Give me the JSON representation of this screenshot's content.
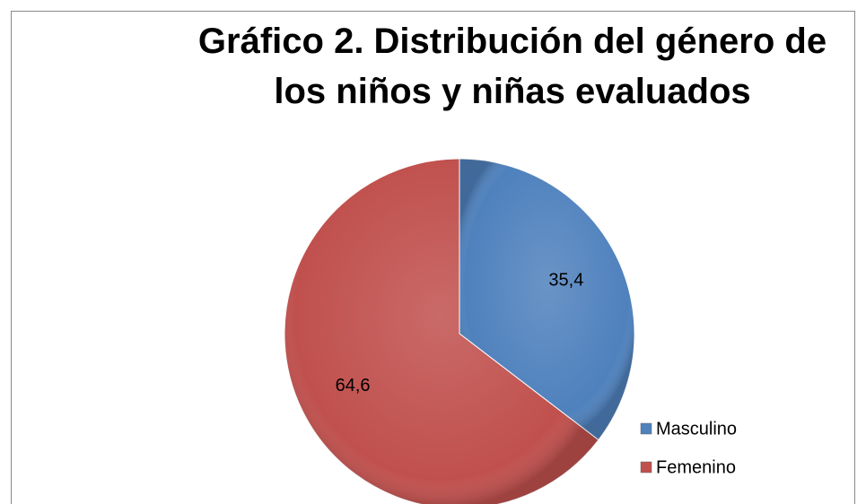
{
  "chart_data": {
    "type": "pie",
    "title": "Gráfico 2. Distribución del género de los niños y niñas evaluados",
    "categories": [
      "Masculino",
      "Femenino"
    ],
    "values": [
      35.4,
      64.6
    ],
    "value_labels": [
      "35,4",
      "64,6"
    ],
    "colors": [
      "#4f81bd",
      "#c0504d"
    ],
    "legend": "right"
  }
}
